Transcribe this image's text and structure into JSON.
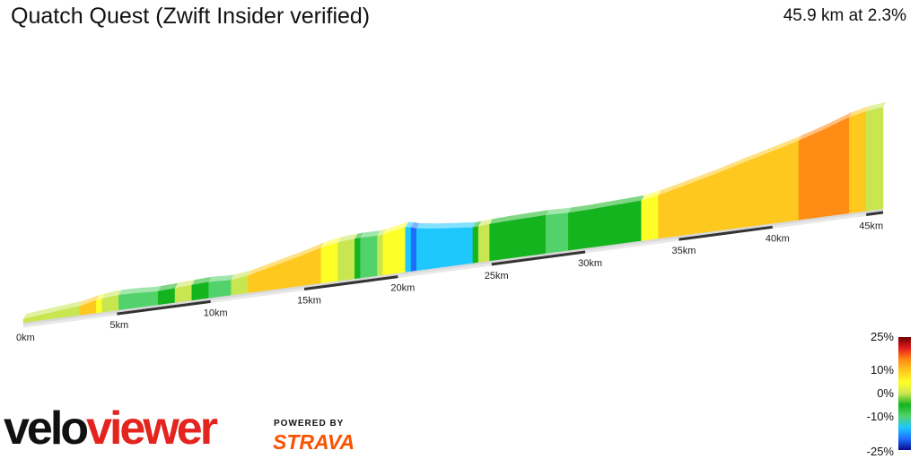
{
  "header": {
    "title": "Quatch Quest (Zwift Insider verified)",
    "summary": "45.9 km at 2.3%"
  },
  "chart_data": {
    "type": "area",
    "title": "Quatch Quest (Zwift Insider verified)",
    "distance_km": 45.9,
    "avg_gradient_pct": 2.3,
    "x_unit": "km",
    "x_ticks": [
      "0km",
      "5km",
      "10km",
      "15km",
      "20km",
      "25km",
      "30km",
      "35km",
      "40km",
      "45km"
    ],
    "series": [
      {
        "x": [
          0,
          1,
          2,
          3,
          4,
          5,
          6,
          7,
          8,
          9,
          10,
          11,
          12,
          13,
          14,
          15,
          16,
          17,
          18,
          19,
          20,
          20.5,
          21,
          22,
          23,
          24,
          25,
          26,
          27,
          28,
          29,
          30,
          31,
          32,
          33,
          34,
          35,
          36,
          37,
          38,
          39,
          40,
          41,
          42,
          43,
          44,
          45,
          45.9
        ],
        "y": [
          0,
          5,
          10,
          14,
          25,
          30,
          29,
          26,
          28,
          31,
          33,
          30,
          36,
          48,
          60,
          72,
          86,
          94,
          97,
          96,
          106,
          110,
          102,
          95,
          90,
          85,
          88,
          90,
          91,
          92,
          90,
          91,
          93,
          95,
          97,
          106,
          118,
          130,
          142,
          156,
          169,
          182,
          195,
          210,
          226,
          244,
          255,
          260
        ]
      }
    ],
    "gradient_colors": [
      "#0a0a8a",
      "#1e6fff",
      "#1ec8ff",
      "#52d26a",
      "#14b41e",
      "#c8e650",
      "#ffff28",
      "#ffc81e",
      "#ff8c14",
      "#e61e1e",
      "#6e0000"
    ],
    "gradient_legend": [
      "25%",
      "10%",
      "0%",
      "-10%",
      "-25%"
    ]
  },
  "brand": {
    "logo_velo": "velo",
    "logo_viewer": "viewer",
    "powered_by": "POWERED BY",
    "strava": "STRAVA"
  }
}
